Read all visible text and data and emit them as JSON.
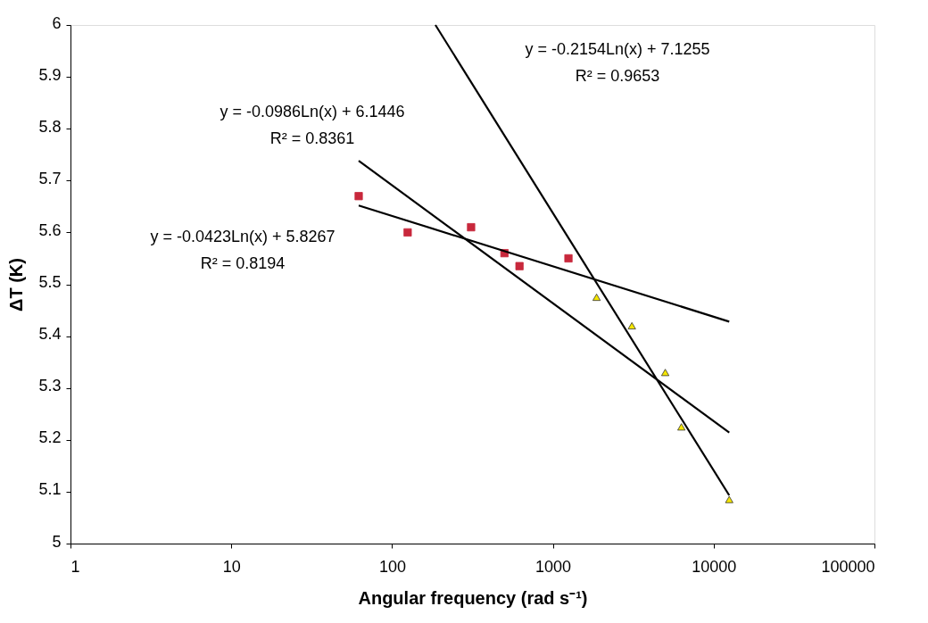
{
  "chart_data": {
    "type": "scatter",
    "xlabel": "Angular frequency (rad s⁻¹)",
    "ylabel": "ΔT (K)",
    "log": "x",
    "xlim": [
      1,
      100000
    ],
    "xticks": [
      1,
      10,
      100,
      1000,
      10000,
      100000
    ],
    "ylim": [
      5,
      6
    ],
    "yticks": [
      5,
      5.1,
      5.2,
      5.3,
      5.4,
      5.5,
      5.6,
      5.7,
      5.8,
      5.9,
      6
    ],
    "grid": false,
    "series": [
      {
        "marker": "square",
        "color": "#c8283c",
        "x": [
          62,
          125,
          310,
          500,
          620,
          1250
        ],
        "values": [
          5.67,
          5.6,
          5.61,
          5.56,
          5.535,
          5.55
        ]
      },
      {
        "marker": "triangle",
        "color": "#f5e600",
        "x": [
          1870,
          3100,
          5000,
          6300,
          12500
        ],
        "values": [
          5.475,
          5.42,
          5.33,
          5.225,
          5.085
        ]
      },
      {
        "type": "line",
        "color": "#000000",
        "x": [
          62,
          12500
        ],
        "values": [
          5.652,
          5.428
        ]
      },
      {
        "type": "line",
        "color": "#000000",
        "x": [
          62,
          12500
        ],
        "values": [
          5.738,
          5.214
        ]
      },
      {
        "type": "line",
        "color": "#000000",
        "x": [
          186,
          12500
        ],
        "values": [
          6.0,
          5.093
        ]
      }
    ],
    "annotations": [
      "y = -0.2154Ln(x) + 7.1255",
      "R² = 0.9653",
      "y = -0.0986Ln(x) + 6.1446",
      "R² = 0.8361",
      "y = -0.0423Ln(x) + 5.8267",
      "R² = 0.8194"
    ]
  }
}
